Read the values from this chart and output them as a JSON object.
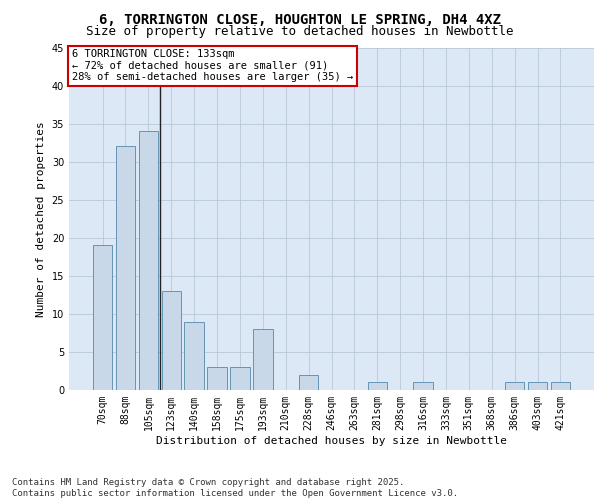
{
  "title_line1": "6, TORRINGTON CLOSE, HOUGHTON LE SPRING, DH4 4XZ",
  "title_line2": "Size of property relative to detached houses in Newbottle",
  "xlabel": "Distribution of detached houses by size in Newbottle",
  "ylabel": "Number of detached properties",
  "categories": [
    "70sqm",
    "88sqm",
    "105sqm",
    "123sqm",
    "140sqm",
    "158sqm",
    "175sqm",
    "193sqm",
    "210sqm",
    "228sqm",
    "246sqm",
    "263sqm",
    "281sqm",
    "298sqm",
    "316sqm",
    "333sqm",
    "351sqm",
    "368sqm",
    "386sqm",
    "403sqm",
    "421sqm"
  ],
  "values": [
    19,
    32,
    34,
    13,
    9,
    3,
    3,
    8,
    0,
    2,
    0,
    0,
    1,
    0,
    1,
    0,
    0,
    0,
    1,
    1,
    1
  ],
  "bar_color": "#c8d8e8",
  "bar_edge_color": "#5588aa",
  "vline_x": 3,
  "ylim": [
    0,
    45
  ],
  "yticks": [
    0,
    5,
    10,
    15,
    20,
    25,
    30,
    35,
    40,
    45
  ],
  "bg_color": "#dce8f5",
  "annotation_text": "6 TORRINGTON CLOSE: 133sqm\n← 72% of detached houses are smaller (91)\n28% of semi-detached houses are larger (35) →",
  "annotation_box_color": "#ffffff",
  "annotation_box_edge": "#cc0000",
  "footer_line1": "Contains HM Land Registry data © Crown copyright and database right 2025.",
  "footer_line2": "Contains public sector information licensed under the Open Government Licence v3.0.",
  "grid_color": "#b8c8d8",
  "title_fontsize": 10,
  "subtitle_fontsize": 9,
  "axis_label_fontsize": 8,
  "tick_fontsize": 7,
  "annotation_fontsize": 7.5,
  "footer_fontsize": 6.5
}
